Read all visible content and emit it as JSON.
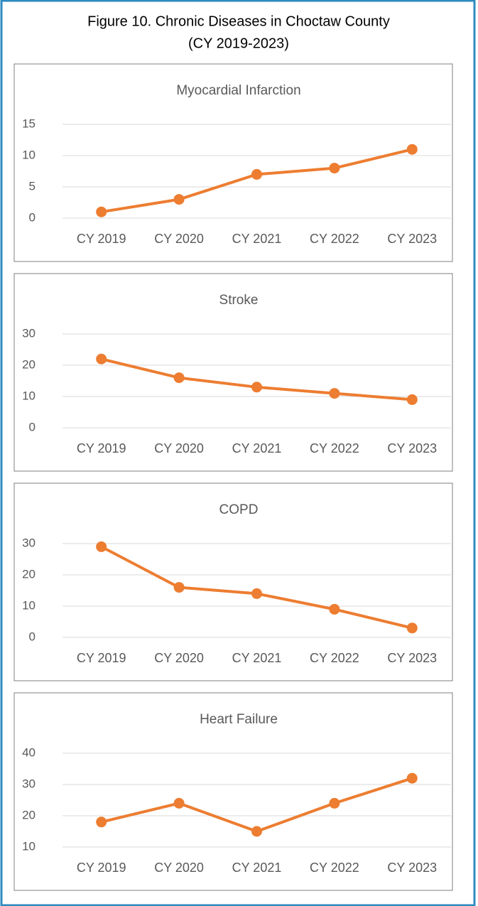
{
  "title": "Figure 10. Chronic Diseases in Choctaw County",
  "subtitle": "(CY 2019-2023)",
  "chart_data": [
    {
      "type": "line",
      "title": "Myocardial Infarction",
      "categories": [
        "CY 2019",
        "CY 2020",
        "CY 2021",
        "CY 2022",
        "CY 2023"
      ],
      "values": [
        1,
        3,
        7,
        8,
        11
      ],
      "color": "#ed7d31",
      "ylim": [
        0,
        15
      ],
      "yticks": [
        0,
        5,
        10,
        15
      ],
      "grid": true
    },
    {
      "type": "line",
      "title": "Stroke",
      "categories": [
        "CY 2019",
        "CY 2020",
        "CY 2021",
        "CY 2022",
        "CY 2023"
      ],
      "values": [
        22,
        16,
        13,
        11,
        9
      ],
      "color": "#ed7d31",
      "ylim": [
        0,
        30
      ],
      "yticks": [
        0,
        10,
        20,
        30
      ],
      "grid": true
    },
    {
      "type": "line",
      "title": "COPD",
      "categories": [
        "CY 2019",
        "CY 2020",
        "CY 2021",
        "CY 2022",
        "CY 2023"
      ],
      "values": [
        29,
        16,
        14,
        9,
        3
      ],
      "color": "#ed7d31",
      "ylim": [
        0,
        30
      ],
      "yticks": [
        0,
        10,
        20,
        30
      ],
      "grid": true
    },
    {
      "type": "line",
      "title": "Heart Failure",
      "categories": [
        "CY 2019",
        "CY 2020",
        "CY 2021",
        "CY 2022",
        "CY 2023"
      ],
      "values": [
        18,
        24,
        15,
        24,
        32
      ],
      "color": "#ed7d31",
      "ylim": [
        10,
        40
      ],
      "yticks": [
        10,
        20,
        30,
        40
      ],
      "grid": true
    }
  ]
}
